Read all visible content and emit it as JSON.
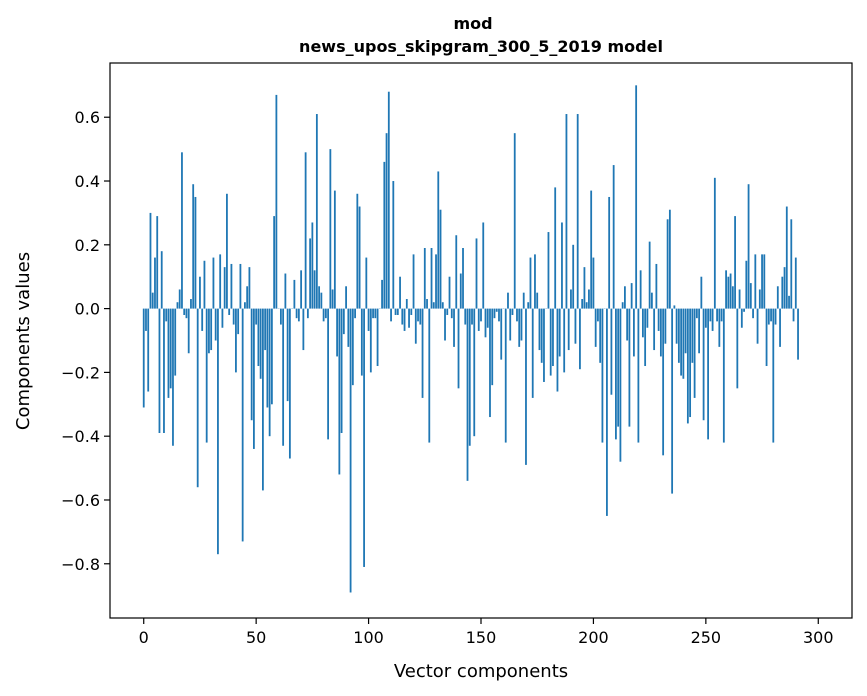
{
  "chart_data": {
    "type": "bar",
    "title": "mod",
    "subtitle": "news_upos_skipgram_300_5_2019 model",
    "xlabel": "Vector components",
    "ylabel": "Components values",
    "xlim": [
      -15,
      315
    ],
    "ylim": [
      -0.97,
      0.77
    ],
    "x_ticks": [
      0,
      50,
      100,
      150,
      200,
      250,
      300
    ],
    "y_ticks": [
      -0.8,
      -0.6,
      -0.4,
      -0.2,
      0.0,
      0.2,
      0.4,
      0.6
    ],
    "y_tick_labels": [
      "−0.8",
      "−0.6",
      "−0.4",
      "−0.2",
      "0.0",
      "0.2",
      "0.4",
      "0.6"
    ],
    "bar_color": "#1f77b4",
    "series": [
      {
        "name": "components",
        "values": [
          -0.31,
          -0.07,
          -0.26,
          0.3,
          0.05,
          0.16,
          0.29,
          -0.39,
          0.18,
          -0.39,
          -0.04,
          -0.28,
          -0.25,
          -0.43,
          -0.21,
          0.02,
          0.06,
          0.49,
          -0.02,
          -0.03,
          -0.14,
          0.03,
          0.39,
          0.35,
          -0.56,
          0.1,
          -0.07,
          0.15,
          -0.42,
          -0.14,
          -0.13,
          0.16,
          -0.1,
          -0.77,
          0.17,
          -0.06,
          0.13,
          0.36,
          -0.02,
          0.14,
          -0.05,
          -0.2,
          -0.08,
          0.14,
          -0.73,
          0.02,
          0.07,
          0.13,
          -0.35,
          -0.44,
          -0.05,
          -0.18,
          -0.22,
          -0.57,
          -0.13,
          -0.31,
          -0.4,
          -0.3,
          0.29,
          0.67,
          0.0,
          -0.05,
          -0.43,
          0.11,
          -0.29,
          -0.47,
          0.0,
          0.09,
          -0.03,
          -0.04,
          0.12,
          -0.13,
          0.49,
          -0.03,
          0.22,
          0.27,
          0.12,
          0.61,
          0.07,
          0.05,
          -0.04,
          -0.03,
          -0.41,
          0.5,
          0.06,
          0.37,
          -0.15,
          -0.52,
          -0.39,
          -0.08,
          0.07,
          -0.12,
          -0.89,
          -0.24,
          -0.03,
          0.36,
          0.32,
          -0.21,
          -0.81,
          0.16,
          -0.07,
          -0.2,
          -0.03,
          -0.03,
          -0.18,
          0.0,
          0.09,
          0.46,
          0.55,
          0.68,
          -0.04,
          0.4,
          -0.02,
          -0.02,
          0.1,
          -0.05,
          -0.07,
          0.03,
          -0.06,
          -0.02,
          0.17,
          -0.11,
          -0.04,
          -0.05,
          -0.28,
          0.19,
          0.03,
          -0.42,
          0.19,
          0.02,
          0.17,
          0.43,
          0.31,
          0.02,
          -0.1,
          -0.02,
          0.1,
          -0.03,
          -0.12,
          0.23,
          -0.25,
          0.11,
          0.19,
          -0.05,
          -0.54,
          -0.43,
          -0.05,
          -0.4,
          0.22,
          -0.07,
          -0.04,
          0.27,
          -0.09,
          -0.06,
          -0.34,
          -0.24,
          -0.03,
          -0.01,
          -0.04,
          -0.16,
          0.0,
          -0.42,
          0.05,
          -0.1,
          -0.02,
          0.55,
          -0.04,
          -0.12,
          -0.1,
          0.05,
          -0.49,
          0.02,
          0.16,
          -0.28,
          0.17,
          0.05,
          -0.13,
          -0.17,
          -0.23,
          0.0,
          0.24,
          -0.21,
          -0.18,
          0.38,
          -0.26,
          -0.15,
          0.27,
          -0.2,
          0.61,
          -0.13,
          0.06,
          0.2,
          -0.11,
          0.61,
          -0.19,
          0.03,
          0.13,
          0.02,
          0.06,
          0.37,
          0.16,
          -0.12,
          -0.04,
          -0.17,
          -0.42,
          0.0,
          -0.65,
          0.35,
          -0.27,
          0.45,
          -0.41,
          -0.37,
          -0.48,
          0.02,
          0.07,
          -0.1,
          -0.37,
          0.08,
          -0.15,
          0.7,
          -0.42,
          0.12,
          -0.09,
          -0.18,
          -0.06,
          0.21,
          0.05,
          -0.13,
          0.14,
          -0.07,
          -0.15,
          -0.46,
          -0.11,
          0.28,
          0.31,
          -0.58,
          0.01,
          -0.11,
          -0.17,
          -0.21,
          -0.22,
          -0.14,
          -0.36,
          -0.34,
          -0.17,
          -0.28,
          -0.03,
          -0.14,
          0.1,
          -0.35,
          -0.06,
          -0.41,
          -0.04,
          -0.07,
          0.41,
          -0.04,
          -0.12,
          -0.04,
          -0.42,
          0.12,
          0.1,
          0.11,
          0.07,
          0.29,
          -0.25,
          0.06,
          -0.06,
          -0.01,
          0.15,
          0.39,
          0.08,
          -0.03,
          0.17,
          -0.11,
          0.06,
          0.17,
          0.17,
          -0.18,
          -0.05,
          -0.04,
          -0.42,
          -0.05,
          0.07,
          -0.12,
          0.1,
          0.13,
          0.32,
          0.04,
          0.28,
          -0.04,
          0.16,
          -0.16
        ]
      }
    ]
  }
}
